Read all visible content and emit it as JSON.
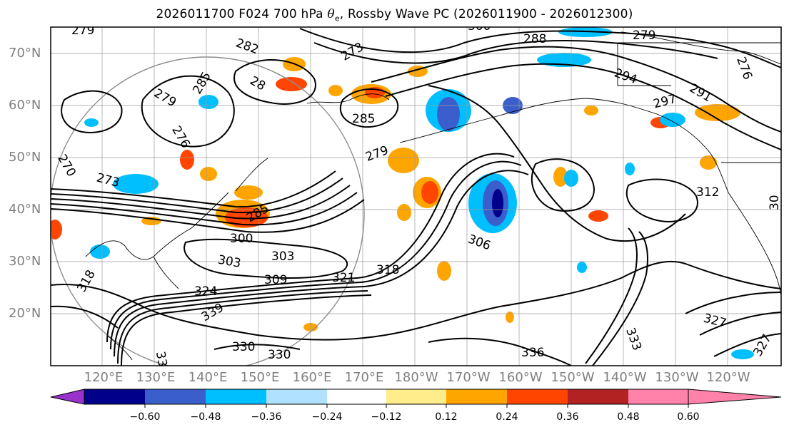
{
  "title": {
    "prefix": "2026011700 F024 700 hPa ",
    "symbol": "θ",
    "subscript": "e",
    "suffix": ", Rossby Wave PC (2026011900 - 2026012300)"
  },
  "lat_labels": [
    "70°N",
    "60°N",
    "50°N",
    "40°N",
    "30°N",
    "20°N"
  ],
  "lon_labels": [
    "120°E",
    "130°E",
    "140°E",
    "150°E",
    "160°E",
    "170°E",
    "180°W",
    "170°W",
    "160°W",
    "150°W",
    "140°W",
    "130°W",
    "120°W"
  ],
  "contour_labels": [
    "279",
    "282",
    "273",
    "28",
    "276",
    "285",
    "279",
    "285",
    "288",
    "279",
    "294",
    "297",
    "291",
    "300",
    "279",
    "276",
    "270",
    "273",
    "285",
    "300",
    "303",
    "303",
    "309",
    "318",
    "321",
    "306",
    "312",
    "30",
    "318",
    "324",
    "327",
    "327",
    "330",
    "330",
    "336",
    "339",
    "33",
    "333"
  ],
  "colorbar": {
    "colors": [
      "#9932cc",
      "#00008b",
      "#3a5fcd",
      "#00bfff",
      "#b0e2ff",
      "#ffffff",
      "#ffec8b",
      "#ffa500",
      "#ff4500",
      "#b22222",
      "#ff82ab"
    ],
    "ticks": [
      "−0.60",
      "−0.48",
      "−0.36",
      "−0.24",
      "−0.12",
      "0.12",
      "0.24",
      "0.36",
      "0.48",
      "0.60"
    ]
  }
}
